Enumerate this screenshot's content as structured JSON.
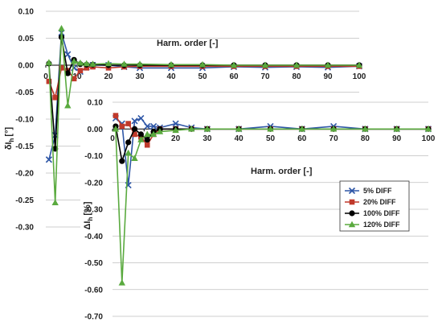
{
  "colors": {
    "blue": "#2e56a6",
    "red": "#c0392b",
    "black": "#000000",
    "green": "#5aaa3f"
  },
  "chart_data": [
    {
      "type": "line",
      "subplot": "upper",
      "xlabel": "Harm. order [-]",
      "ylabel_main": "δI",
      "ylabel_sub": "h",
      "ylabel_unit": "[°]",
      "xlim": [
        0,
        100
      ],
      "ylim": [
        -0.3,
        0.1
      ],
      "xticks": [
        0,
        10,
        20,
        30,
        40,
        50,
        60,
        70,
        80,
        90,
        100
      ],
      "yticks": [
        0.1,
        0.05,
        0.0,
        -0.05,
        -0.1,
        -0.15,
        -0.2,
        -0.25,
        -0.3
      ],
      "ytick_labels": [
        "0.10",
        "0.05",
        "0.00",
        "-0.05",
        "-0.10",
        "-0.15",
        "-0.20",
        "-0.25",
        "-0.30"
      ],
      "grid": true,
      "series": [
        {
          "name": "5% DIFF",
          "color": "blue",
          "marker": "x",
          "x": [
            1,
            3,
            5,
            7,
            9,
            11,
            13,
            15,
            20,
            25,
            30,
            40,
            50,
            60,
            70,
            80,
            90,
            100
          ],
          "y": [
            -0.175,
            -0.13,
            0.06,
            0.02,
            -0.005,
            -0.012,
            -0.004,
            0.0,
            0.0,
            -0.003,
            -0.005,
            -0.005,
            -0.005,
            -0.003,
            -0.004,
            -0.003,
            -0.004,
            -0.002
          ]
        },
        {
          "name": "20% DIFF",
          "color": "red",
          "marker": "square",
          "x": [
            1,
            3,
            5,
            7,
            9,
            11,
            13,
            15,
            20,
            25,
            30,
            40,
            50,
            60,
            70,
            80,
            90,
            100
          ],
          "y": [
            -0.03,
            -0.06,
            -0.005,
            -0.01,
            -0.025,
            -0.01,
            -0.005,
            -0.003,
            -0.005,
            -0.003,
            -0.002,
            -0.002,
            -0.002,
            -0.002,
            -0.002,
            -0.002,
            -0.002,
            -0.002
          ]
        },
        {
          "name": "100% DIFF",
          "color": "black",
          "marker": "circle",
          "x": [
            1,
            3,
            5,
            7,
            9,
            11,
            13,
            15,
            20,
            25,
            30,
            40,
            50,
            60,
            70,
            80,
            90,
            100
          ],
          "y": [
            0.003,
            -0.155,
            0.052,
            -0.015,
            0.01,
            0.002,
            0.001,
            0.001,
            0.0,
            0.0,
            0.0,
            0.0,
            0.0,
            0.0,
            0.0,
            0.0,
            0.0,
            0.0
          ]
        },
        {
          "name": "120% DIFF",
          "color": "green",
          "marker": "triangle",
          "x": [
            1,
            3,
            5,
            7,
            9,
            11,
            13,
            15,
            20,
            25,
            30,
            40,
            50,
            60,
            70,
            80,
            90,
            100
          ],
          "y": [
            0.005,
            -0.255,
            0.068,
            -0.075,
            0.007,
            0.004,
            0.003,
            0.002,
            0.003,
            0.002,
            0.002,
            0.001,
            0.001,
            0.0,
            0.0,
            0.0,
            0.0,
            0.0
          ]
        }
      ]
    },
    {
      "type": "line",
      "subplot": "lower",
      "xlabel": "Harm. order [-]",
      "ylabel_main": "ΔI",
      "ylabel_sub": "h",
      "ylabel_unit": "[%]",
      "xlim": [
        0,
        100
      ],
      "ylim": [
        -0.7,
        0.1
      ],
      "xticks": [
        0,
        10,
        20,
        30,
        40,
        50,
        60,
        70,
        80,
        90,
        100
      ],
      "yticks": [
        0.1,
        0.0,
        -0.1,
        -0.2,
        -0.3,
        -0.4,
        -0.5,
        -0.6,
        -0.7
      ],
      "ytick_labels": [
        "0.10",
        "0.00",
        "-0.10",
        "-0.20",
        "-0.30",
        "-0.40",
        "-0.50",
        "-0.60",
        "-0.70"
      ],
      "grid": true,
      "legend": {
        "placement": "right",
        "entries": [
          "5% DIFF",
          "20% DIFF",
          "100% DIFF",
          "120% DIFF"
        ]
      },
      "series": [
        {
          "name": "5% DIFF",
          "color": "blue",
          "marker": "x",
          "x": [
            1,
            3,
            5,
            7,
            9,
            11,
            13,
            15,
            20,
            25,
            30,
            40,
            50,
            60,
            70,
            80,
            90,
            100
          ],
          "y": [
            0.04,
            0.02,
            -0.21,
            0.03,
            0.04,
            0.01,
            0.01,
            0.005,
            0.02,
            0.005,
            0.0,
            0.0,
            0.01,
            0.0,
            0.01,
            0.0,
            0.0,
            0.0
          ]
        },
        {
          "name": "20% DIFF",
          "color": "red",
          "marker": "square",
          "x": [
            1,
            3,
            5,
            7,
            9,
            11,
            13,
            15,
            20,
            25,
            30,
            40,
            50,
            60,
            70,
            80,
            90,
            100
          ],
          "y": [
            0.05,
            0.01,
            0.02,
            -0.02,
            -0.03,
            -0.06,
            -0.02,
            0.0,
            0.0,
            0.0,
            0.0,
            0.0,
            0.0,
            0.0,
            0.0,
            0.0,
            0.0,
            0.0
          ]
        },
        {
          "name": "100% DIFF",
          "color": "black",
          "marker": "circle",
          "x": [
            1,
            3,
            5,
            7,
            9,
            11,
            13,
            15,
            20,
            25,
            30,
            40,
            50,
            60,
            70,
            80,
            90,
            100
          ],
          "y": [
            0.01,
            -0.12,
            -0.05,
            0.0,
            -0.02,
            -0.04,
            -0.01,
            0.0,
            0.0,
            0.0,
            0.0,
            0.0,
            0.0,
            0.0,
            0.0,
            0.0,
            0.0,
            0.0
          ]
        },
        {
          "name": "120% DIFF",
          "color": "green",
          "marker": "triangle",
          "x": [
            1,
            3,
            5,
            7,
            9,
            11,
            13,
            15,
            20,
            25,
            30,
            40,
            50,
            60,
            70,
            80,
            90,
            100
          ],
          "y": [
            0.0,
            -0.575,
            -0.09,
            -0.11,
            -0.04,
            -0.02,
            -0.02,
            -0.01,
            -0.005,
            0.0,
            0.0,
            0.0,
            0.0,
            0.0,
            0.0,
            0.0,
            0.0,
            0.0
          ]
        }
      ]
    }
  ]
}
